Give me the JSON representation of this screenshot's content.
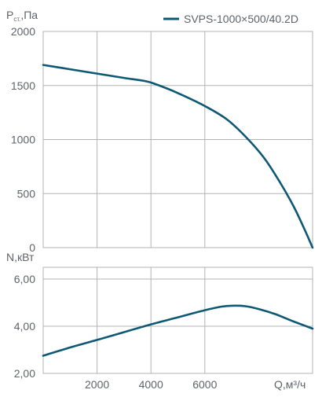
{
  "chart_data": [
    {
      "type": "line",
      "title": "",
      "ylabel_main": "P",
      "ylabel_sub": "ст.",
      "ylabel_unit": ",Па",
      "xlim": [
        0,
        10000
      ],
      "ylim": [
        0,
        2000
      ],
      "yticks": [
        0,
        500,
        1000,
        1500,
        2000
      ],
      "ytick_labels": [
        "0",
        "500",
        "1000",
        "1500",
        "2000"
      ],
      "grid": true,
      "legend_position": "top-right",
      "series": [
        {
          "name": "SVPS-1000×500/40.2D",
          "color": "#0d5874",
          "x": [
            0,
            1000,
            2000,
            3000,
            3800,
            4200,
            5000,
            6000,
            6800,
            7500,
            8200,
            8800,
            9300,
            9700,
            10000
          ],
          "y": [
            1690,
            1650,
            1610,
            1570,
            1540,
            1510,
            1430,
            1310,
            1190,
            1030,
            830,
            600,
            380,
            170,
            0
          ]
        }
      ]
    },
    {
      "type": "line",
      "title": "",
      "ylabel": "N,кВт",
      "xlabel": "Q,м³/ч",
      "xlim": [
        0,
        10000
      ],
      "ylim": [
        2,
        6.5
      ],
      "yticks": [
        2,
        4,
        6
      ],
      "ytick_labels": [
        "2,00",
        "4,00",
        "6,00"
      ],
      "xticks": [
        2000,
        4000,
        6000
      ],
      "xtick_labels": [
        "2000",
        "4000",
        "6000"
      ],
      "grid": true,
      "series": [
        {
          "color": "#0d5874",
          "x": [
            0,
            1000,
            2000,
            3000,
            4000,
            5000,
            6000,
            6600,
            7000,
            7500,
            8000,
            8600,
            9300,
            10000
          ],
          "y": [
            2.75,
            3.1,
            3.42,
            3.75,
            4.08,
            4.38,
            4.68,
            4.83,
            4.87,
            4.85,
            4.73,
            4.52,
            4.2,
            3.9
          ]
        }
      ]
    }
  ]
}
